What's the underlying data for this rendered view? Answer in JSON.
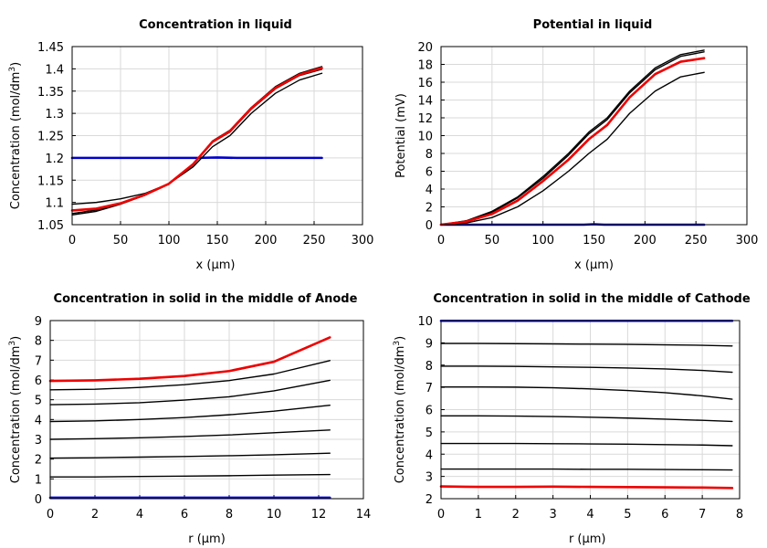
{
  "chart_data": [
    {
      "type": "line",
      "title": "Concentration in liquid",
      "xlabel": "x (µm)",
      "ylabel": "Concentration (mol/dm³)",
      "xlim": [
        0,
        300
      ],
      "ylim": [
        1.05,
        1.45
      ],
      "xticks": [
        "0",
        "50",
        "100",
        "150",
        "200",
        "250",
        "300"
      ],
      "yticks": [
        "1.05",
        "1.1",
        "1.15",
        "1.2",
        "1.25",
        "1.3",
        "1.35",
        "1.4",
        "1.45"
      ],
      "grid": true,
      "series": [
        {
          "color": "#0000cc",
          "x": [
            0,
            130,
            150,
            170,
            258
          ],
          "y": [
            1.2,
            1.2,
            1.201,
            1.2,
            1.2
          ]
        },
        {
          "color": "#000000",
          "x": [
            0,
            25,
            50,
            75,
            100,
            125,
            145,
            163,
            185,
            210,
            235,
            258
          ],
          "y": [
            1.096,
            1.1,
            1.108,
            1.12,
            1.142,
            1.18,
            1.225,
            1.25,
            1.3,
            1.345,
            1.375,
            1.39
          ]
        },
        {
          "color": "#000000",
          "x": [
            0,
            25,
            50,
            75,
            100,
            125,
            145,
            163,
            185,
            210,
            235,
            258
          ],
          "y": [
            1.072,
            1.08,
            1.096,
            1.116,
            1.142,
            1.185,
            1.235,
            1.258,
            1.309,
            1.355,
            1.385,
            1.399
          ]
        },
        {
          "color": "#000000",
          "x": [
            0,
            25,
            50,
            75,
            100,
            125,
            145,
            163,
            185,
            210,
            235,
            258
          ],
          "y": [
            1.075,
            1.083,
            1.097,
            1.117,
            1.142,
            1.186,
            1.238,
            1.262,
            1.313,
            1.36,
            1.39,
            1.405
          ]
        },
        {
          "color": "#ee0000",
          "x": [
            0,
            25,
            50,
            75,
            100,
            125,
            145,
            163,
            185,
            210,
            235,
            258
          ],
          "y": [
            1.082,
            1.086,
            1.098,
            1.117,
            1.142,
            1.186,
            1.236,
            1.26,
            1.311,
            1.357,
            1.387,
            1.402
          ]
        }
      ]
    },
    {
      "type": "line",
      "title": "Potential in liquid",
      "xlabel": "x (µm)",
      "ylabel": "Potential (mV)",
      "xlim": [
        0,
        300
      ],
      "ylim": [
        0,
        20
      ],
      "xticks": [
        "0",
        "50",
        "100",
        "150",
        "200",
        "250",
        "300"
      ],
      "yticks": [
        "0",
        "2",
        "4",
        "6",
        "8",
        "10",
        "12",
        "14",
        "16",
        "18",
        "20"
      ],
      "grid": true,
      "series": [
        {
          "color": "#0000cc",
          "x": [
            0,
            140,
            150,
            160,
            258
          ],
          "y": [
            0,
            0,
            0.05,
            0,
            0
          ]
        },
        {
          "color": "#000000",
          "x": [
            0,
            25,
            50,
            75,
            100,
            125,
            145,
            163,
            185,
            210,
            235,
            258
          ],
          "y": [
            0,
            0.2,
            0.8,
            2.0,
            3.8,
            6.0,
            8.0,
            9.6,
            12.5,
            15.0,
            16.6,
            17.1
          ]
        },
        {
          "color": "#000000",
          "x": [
            0,
            25,
            50,
            75,
            100,
            125,
            145,
            163,
            185,
            210,
            235,
            258
          ],
          "y": [
            0,
            0.4,
            1.4,
            3.0,
            5.2,
            7.8,
            10.2,
            11.8,
            14.8,
            17.4,
            18.9,
            19.4
          ]
        },
        {
          "color": "#000000",
          "x": [
            0,
            25,
            50,
            75,
            100,
            125,
            145,
            163,
            185,
            210,
            235,
            258
          ],
          "y": [
            0,
            0.45,
            1.5,
            3.1,
            5.4,
            8.0,
            10.4,
            12.0,
            15.0,
            17.6,
            19.1,
            19.6
          ]
        },
        {
          "color": "#ee0000",
          "x": [
            0,
            25,
            50,
            75,
            100,
            125,
            145,
            163,
            185,
            210,
            235,
            258
          ],
          "y": [
            0,
            0.35,
            1.2,
            2.7,
            4.9,
            7.3,
            9.6,
            11.2,
            14.3,
            16.9,
            18.3,
            18.7
          ]
        }
      ]
    },
    {
      "type": "line",
      "title": "Concentration in solid in the middle of Anode",
      "xlabel": "r (µm)",
      "ylabel": "Concentration (mol/dm³)",
      "xlim": [
        0,
        14
      ],
      "ylim": [
        0,
        9
      ],
      "xticks": [
        "0",
        "2",
        "4",
        "6",
        "8",
        "10",
        "12",
        "14"
      ],
      "yticks": [
        "0",
        "1",
        "2",
        "3",
        "4",
        "5",
        "6",
        "7",
        "8",
        "9"
      ],
      "grid": true,
      "series": [
        {
          "color": "#0000cc",
          "x": [
            0,
            3,
            6,
            9,
            12.5
          ],
          "y": [
            0.05,
            0.05,
            0.05,
            0.05,
            0.05
          ]
        },
        {
          "color": "#000000",
          "x": [
            0,
            2,
            4,
            6,
            8,
            10,
            12.5
          ],
          "y": [
            1.1,
            1.1,
            1.12,
            1.14,
            1.16,
            1.19,
            1.22
          ]
        },
        {
          "color": "#000000",
          "x": [
            0,
            2,
            4,
            6,
            8,
            10,
            12.5
          ],
          "y": [
            2.05,
            2.07,
            2.1,
            2.13,
            2.17,
            2.22,
            2.3
          ]
        },
        {
          "color": "#000000",
          "x": [
            0,
            2,
            4,
            6,
            8,
            10,
            12.5
          ],
          "y": [
            3.0,
            3.03,
            3.08,
            3.14,
            3.22,
            3.33,
            3.47
          ]
        },
        {
          "color": "#000000",
          "x": [
            0,
            2,
            4,
            6,
            8,
            10,
            12.5
          ],
          "y": [
            3.9,
            3.93,
            4.0,
            4.1,
            4.24,
            4.42,
            4.72
          ]
        },
        {
          "color": "#000000",
          "x": [
            0,
            2,
            4,
            6,
            8,
            10,
            12.5
          ],
          "y": [
            4.75,
            4.78,
            4.85,
            4.98,
            5.15,
            5.45,
            5.98
          ]
        },
        {
          "color": "#000000",
          "x": [
            0,
            2,
            4,
            6,
            8,
            10,
            12.5
          ],
          "y": [
            5.5,
            5.53,
            5.62,
            5.76,
            5.97,
            6.3,
            6.98
          ]
        },
        {
          "color": "#ee0000",
          "x": [
            0,
            2,
            4,
            6,
            8,
            10,
            12.5
          ],
          "y": [
            5.95,
            5.98,
            6.06,
            6.2,
            6.45,
            6.92,
            8.15
          ]
        }
      ]
    },
    {
      "type": "line",
      "title": "Concentration in solid in the middle of Cathode",
      "xlabel": "r (µm)",
      "ylabel": "Concentration (mol/dm³)",
      "xlim": [
        0,
        8
      ],
      "ylim": [
        2,
        10
      ],
      "xticks": [
        "0",
        "1",
        "2",
        "3",
        "4",
        "5",
        "6",
        "7",
        "8"
      ],
      "yticks": [
        "2",
        "3",
        "4",
        "5",
        "6",
        "7",
        "8",
        "9",
        "10"
      ],
      "grid": true,
      "series": [
        {
          "color": "#0000cc",
          "x": [
            0,
            2,
            4,
            6,
            7.8
          ],
          "y": [
            9.99,
            9.99,
            9.99,
            9.99,
            9.99
          ]
        },
        {
          "color": "#000000",
          "x": [
            0,
            1,
            2,
            3,
            4,
            5,
            6,
            7,
            7.8
          ],
          "y": [
            8.97,
            8.97,
            8.96,
            8.95,
            8.94,
            8.93,
            8.91,
            8.89,
            8.86
          ]
        },
        {
          "color": "#000000",
          "x": [
            0,
            1,
            2,
            3,
            4,
            5,
            6,
            7,
            7.8
          ],
          "y": [
            7.95,
            7.95,
            7.94,
            7.92,
            7.9,
            7.87,
            7.83,
            7.76,
            7.68
          ]
        },
        {
          "color": "#000000",
          "x": [
            0,
            1,
            2,
            3,
            4,
            5,
            6,
            7,
            7.8
          ],
          "y": [
            7.02,
            7.02,
            7.01,
            6.98,
            6.93,
            6.86,
            6.76,
            6.62,
            6.47
          ]
        },
        {
          "color": "#000000",
          "x": [
            0,
            1,
            2,
            3,
            4,
            5,
            6,
            7,
            7.8
          ],
          "y": [
            5.72,
            5.72,
            5.71,
            5.69,
            5.66,
            5.62,
            5.57,
            5.52,
            5.47
          ]
        },
        {
          "color": "#000000",
          "x": [
            0,
            1,
            2,
            3,
            4,
            5,
            6,
            7,
            7.8
          ],
          "y": [
            4.48,
            4.48,
            4.48,
            4.47,
            4.46,
            4.45,
            4.43,
            4.41,
            4.38
          ]
        },
        {
          "color": "#000000",
          "x": [
            0,
            1,
            2,
            3,
            4,
            5,
            6,
            7,
            7.8
          ],
          "y": [
            3.33,
            3.33,
            3.33,
            3.33,
            3.32,
            3.32,
            3.31,
            3.3,
            3.29
          ]
        },
        {
          "color": "#ee0000",
          "x": [
            0,
            1,
            2,
            3,
            4,
            5,
            6,
            7,
            7.8
          ],
          "y": [
            2.55,
            2.53,
            2.53,
            2.54,
            2.53,
            2.52,
            2.51,
            2.5,
            2.48
          ]
        }
      ]
    }
  ]
}
